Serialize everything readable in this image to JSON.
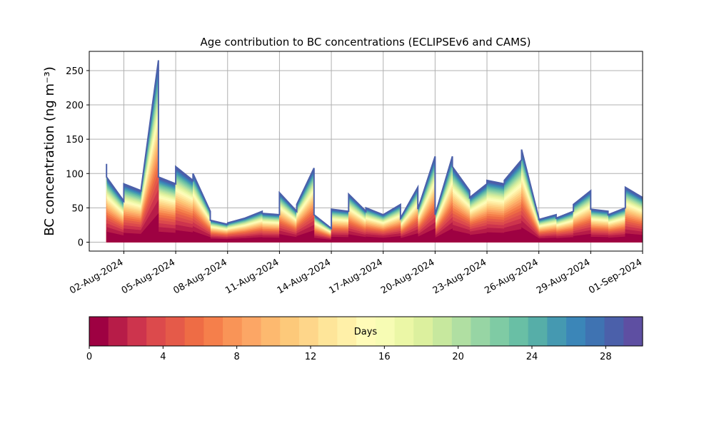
{
  "chart_data": {
    "type": "area",
    "title": "Age contribution to BC concentrations (ECLIPSEv6 and CAMS)",
    "xlabel": "",
    "ylabel": "BC concentration (ng m⁻³)",
    "grid": true,
    "x_unit": "date (2024)",
    "xlim": [
      "2024-07-31",
      "2024-09-01"
    ],
    "x_ticks": [
      "2024-08-02",
      "2024-08-05",
      "2024-08-08",
      "2024-08-11",
      "2024-08-14",
      "2024-08-17",
      "2024-08-20",
      "2024-08-23",
      "2024-08-26",
      "2024-08-29",
      "2024-09-01"
    ],
    "x_tick_labels": [
      "02-Aug-2024",
      "05-Aug-2024",
      "08-Aug-2024",
      "11-Aug-2024",
      "14-Aug-2024",
      "17-Aug-2024",
      "20-Aug-2024",
      "23-Aug-2024",
      "26-Aug-2024",
      "29-Aug-2024",
      "01-Sep-2024"
    ],
    "ylim": [
      -13,
      278
    ],
    "y_ticks": [
      0,
      50,
      100,
      150,
      200,
      250
    ],
    "series_description": "stacked contributions by particle age in days (0-30), total = outer envelope",
    "total": {
      "x": [
        "2024-08-01",
        "2024-08-01",
        "2024-08-01",
        "2024-08-02",
        "2024-08-02",
        "2024-08-03",
        "2024-08-03",
        "2024-08-04",
        "2024-08-04",
        "2024-08-04",
        "2024-08-05",
        "2024-08-05",
        "2024-08-06",
        "2024-08-06",
        "2024-08-07",
        "2024-08-07",
        "2024-08-08",
        "2024-08-08",
        "2024-08-09",
        "2024-08-10",
        "2024-08-10",
        "2024-08-11",
        "2024-08-11",
        "2024-08-12",
        "2024-08-12",
        "2024-08-13",
        "2024-08-13",
        "2024-08-14",
        "2024-08-14",
        "2024-08-15",
        "2024-08-15",
        "2024-08-16",
        "2024-08-16",
        "2024-08-17",
        "2024-08-17",
        "2024-08-18",
        "2024-08-18",
        "2024-08-19",
        "2024-08-19",
        "2024-08-20",
        "2024-08-20",
        "2024-08-21",
        "2024-08-21",
        "2024-08-22",
        "2024-08-22",
        "2024-08-23",
        "2024-08-23",
        "2024-08-24",
        "2024-08-24",
        "2024-08-25",
        "2024-08-25",
        "2024-08-26",
        "2024-08-26",
        "2024-08-27",
        "2024-08-27",
        "2024-08-28",
        "2024-08-28",
        "2024-08-29",
        "2024-08-29",
        "2024-08-30",
        "2024-08-30",
        "2024-08-31",
        "2024-08-31",
        "2024-09-01"
      ],
      "y": [
        97,
        114,
        95,
        60,
        85,
        75,
        78,
        265,
        210,
        95,
        85,
        110,
        90,
        100,
        45,
        32,
        26,
        28,
        35,
        45,
        42,
        40,
        72,
        45,
        55,
        108,
        40,
        20,
        48,
        45,
        70,
        45,
        50,
        40,
        40,
        55,
        35,
        80,
        48,
        125,
        40,
        125,
        110,
        75,
        65,
        85,
        90,
        85,
        90,
        120,
        135,
        35,
        33,
        40,
        35,
        45,
        55,
        75,
        48,
        45,
        40,
        50,
        80,
        65
      ]
    },
    "legend": {
      "type": "colorbar",
      "label": "Days",
      "range": [
        0,
        30
      ],
      "ticks": [
        0,
        4,
        8,
        12,
        16,
        20,
        24,
        28
      ],
      "colors": [
        "#9e0142",
        "#b71c48",
        "#cd344d",
        "#dc4a4c",
        "#e55a49",
        "#ee6c45",
        "#f57f4b",
        "#f99457",
        "#fca665",
        "#fdb96f",
        "#fdc97a",
        "#fed68a",
        "#fee599",
        "#fff0a8",
        "#fffbb8",
        "#f7fcb4",
        "#ebf7a6",
        "#dcf09e",
        "#c7e89e",
        "#b0dfa2",
        "#97d5a4",
        "#7fcba4",
        "#69bfa5",
        "#56aea8",
        "#4599b1",
        "#3b86b8",
        "#3f73b2",
        "#4b60aa",
        "#5e4fa2"
      ]
    },
    "colorbar_label": "Days"
  }
}
